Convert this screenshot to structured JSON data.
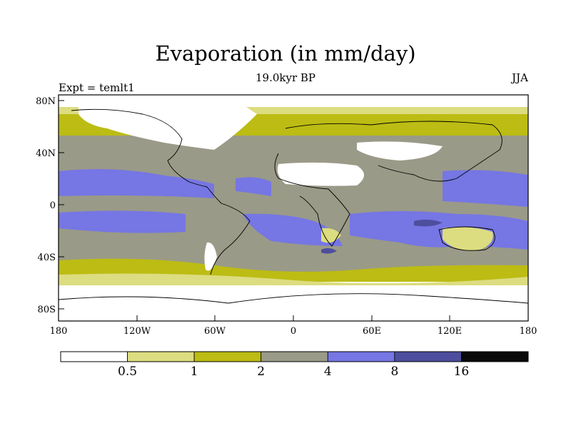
{
  "header": {
    "title": "Evaporation (in mm/day)",
    "subtitle": "19.0kyr BP",
    "left_label": "Expt = temlt1",
    "right_label": "JJA"
  },
  "axes": {
    "lat_ticks": [
      "80N",
      "40N",
      "0",
      "40S",
      "80S"
    ],
    "lon_ticks": [
      "180",
      "120W",
      "60W",
      "0",
      "60E",
      "120E",
      "180"
    ]
  },
  "colorbar": {
    "colors": [
      "#ffffff",
      "#dcdc80",
      "#bcbc14",
      "#9a9a88",
      "#7676e4",
      "#4e4e9e",
      "#0a0a0a"
    ],
    "labels": [
      "0.5",
      "1",
      "2",
      "4",
      "8",
      "16"
    ]
  },
  "map_colors": {
    "lt_0_5": "#ffffff",
    "r0_5_1": "#dcdc80",
    "r1_2": "#bcbc14",
    "r2_4": "#9a9a88",
    "r4_8": "#7676e4",
    "r8_16": "#4e4e9e",
    "coast": "#000000"
  }
}
